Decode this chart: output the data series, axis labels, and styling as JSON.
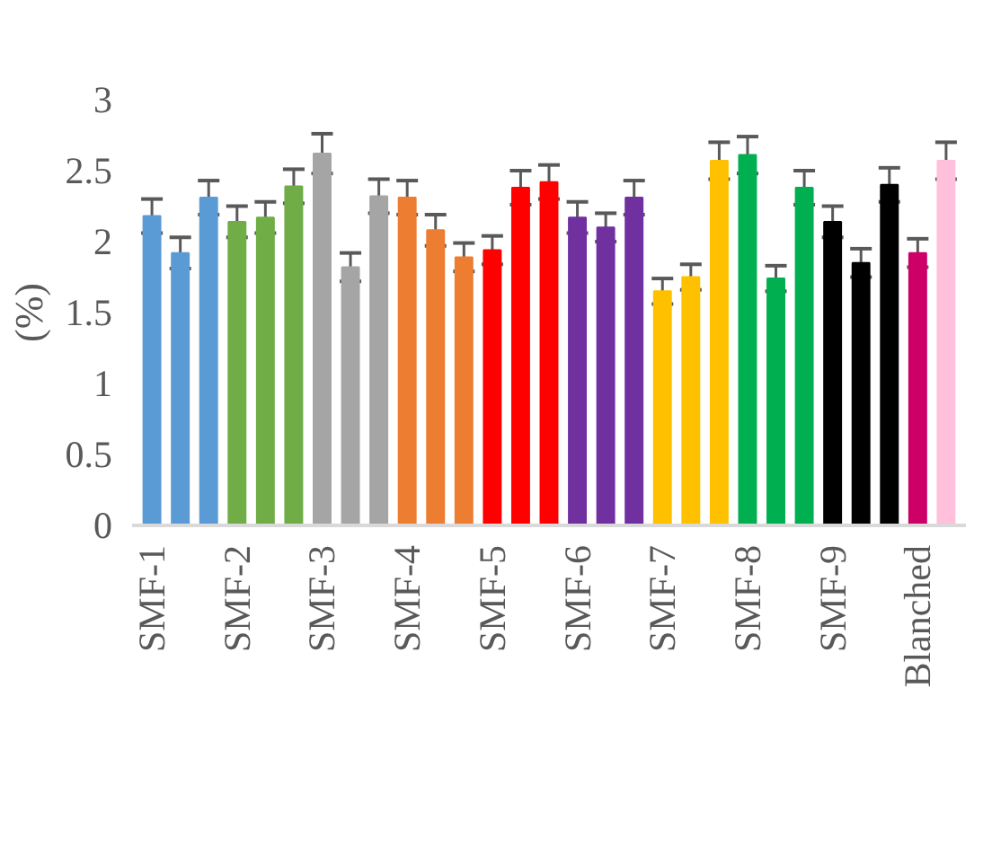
{
  "chart_data": {
    "type": "bar",
    "ylabel": "(%)",
    "categories": [
      "SMF-1",
      null,
      null,
      "SMF-2",
      null,
      null,
      "SMF-3",
      null,
      null,
      "SMF-4",
      null,
      null,
      "SMF-5",
      null,
      null,
      "SMF-6",
      null,
      null,
      "SMF-7",
      null,
      null,
      "SMF-8",
      null,
      null,
      "SMF-9",
      null,
      null,
      "Blanched",
      null
    ],
    "values": [
      2.18,
      1.92,
      2.31,
      2.14,
      2.17,
      2.39,
      2.62,
      1.82,
      2.32,
      2.31,
      2.08,
      1.89,
      1.94,
      2.38,
      2.42,
      2.17,
      2.1,
      2.31,
      1.65,
      1.75,
      2.57,
      2.61,
      1.74,
      2.38,
      2.14,
      1.85,
      2.4,
      1.92,
      2.57
    ],
    "errors": [
      0.12,
      0.11,
      0.12,
      0.11,
      0.11,
      0.12,
      0.14,
      0.1,
      0.12,
      0.12,
      0.11,
      0.1,
      0.1,
      0.12,
      0.12,
      0.11,
      0.1,
      0.12,
      0.09,
      0.09,
      0.13,
      0.13,
      0.09,
      0.12,
      0.11,
      0.1,
      0.12,
      0.1,
      0.13
    ],
    "colors": [
      "#5b9bd5",
      "#5b9bd5",
      "#5b9bd5",
      "#70ad47",
      "#70ad47",
      "#70ad47",
      "#a5a5a5",
      "#a5a5a5",
      "#a5a5a5",
      "#ed7d31",
      "#ed7d31",
      "#ed7d31",
      "#ff0000",
      "#ff0000",
      "#ff0000",
      "#7030a0",
      "#7030a0",
      "#7030a0",
      "#ffc000",
      "#ffc000",
      "#ffc000",
      "#00b050",
      "#00b050",
      "#00b050",
      "#000000",
      "#000000",
      "#000000",
      "#cc0066",
      "#ffc0dc"
    ],
    "ylim": [
      0,
      3
    ],
    "yticks": [
      0,
      0.5,
      1,
      1.5,
      2,
      2.5,
      3
    ],
    "grid": false
  }
}
